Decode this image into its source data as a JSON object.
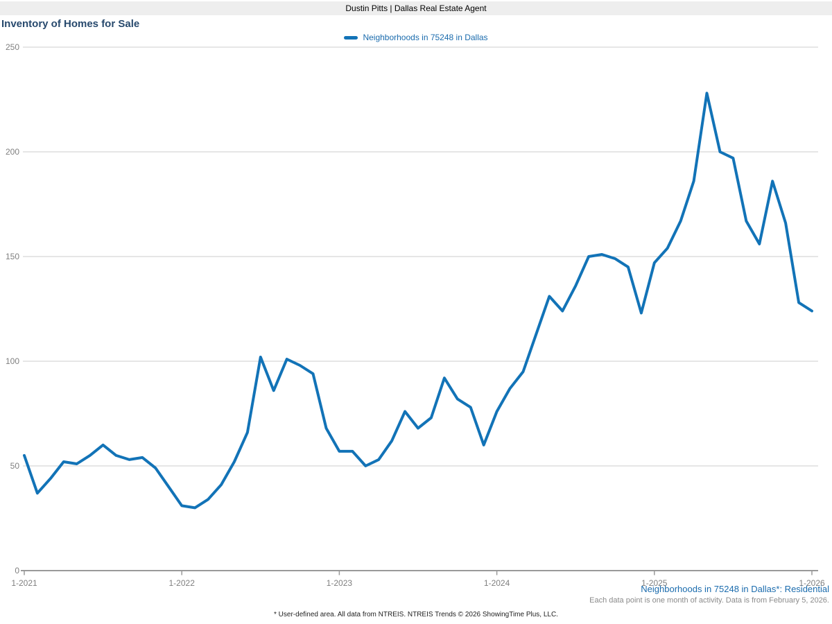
{
  "header": {
    "title": "Dustin Pitts | Dallas Real Estate Agent"
  },
  "page": {
    "title": "Inventory of Homes for Sale"
  },
  "legend": {
    "label": "Neighborhoods in 75248 in Dallas"
  },
  "footer": {
    "series_label": "Neighborhoods in 75248 in Dallas*: Residential",
    "data_note": "Each data point is one month of activity. Data is from February 5, 2026.",
    "disclaimer": "* User-defined area. All data from NTREIS. NTREIS Trends © 2026 ShowingTime Plus, LLC."
  },
  "colors": {
    "line": "#1273B7",
    "legend_text": "#1A6BAD",
    "title_text": "#27496D",
    "header_bg": "#EEEEEE",
    "grid": "#CCCCCC",
    "axis": "#999999",
    "axis_label": "#7F7F7F"
  },
  "chart_data": {
    "type": "line",
    "title": "Inventory of Homes for Sale",
    "x_start": "1-2021",
    "x_interval": "month",
    "points_per_year": 12,
    "x_tick_labels": [
      "1-2021",
      "1-2022",
      "1-2023",
      "1-2024",
      "1-2025",
      "1-2026"
    ],
    "y_tick_labels": [
      "0",
      "50",
      "100",
      "150",
      "200",
      "250"
    ],
    "y_ticks": [
      0,
      50,
      100,
      150,
      200,
      250
    ],
    "ylim": [
      0,
      250
    ],
    "grid": "horizontal-only",
    "legend_position": "top-center",
    "series": [
      {
        "name": "Neighborhoods in 75248 in Dallas",
        "values": [
          55,
          37,
          44,
          52,
          51,
          55,
          60,
          55,
          53,
          54,
          49,
          40,
          31,
          30,
          34,
          41,
          52,
          66,
          102,
          86,
          101,
          98,
          94,
          68,
          57,
          57,
          50,
          53,
          62,
          76,
          68,
          73,
          92,
          82,
          78,
          60,
          76,
          87,
          95,
          113,
          131,
          124,
          136,
          150,
          151,
          149,
          145,
          123,
          147,
          154,
          167,
          186,
          228,
          200,
          197,
          167,
          156,
          186,
          166,
          128,
          124
        ]
      }
    ]
  }
}
